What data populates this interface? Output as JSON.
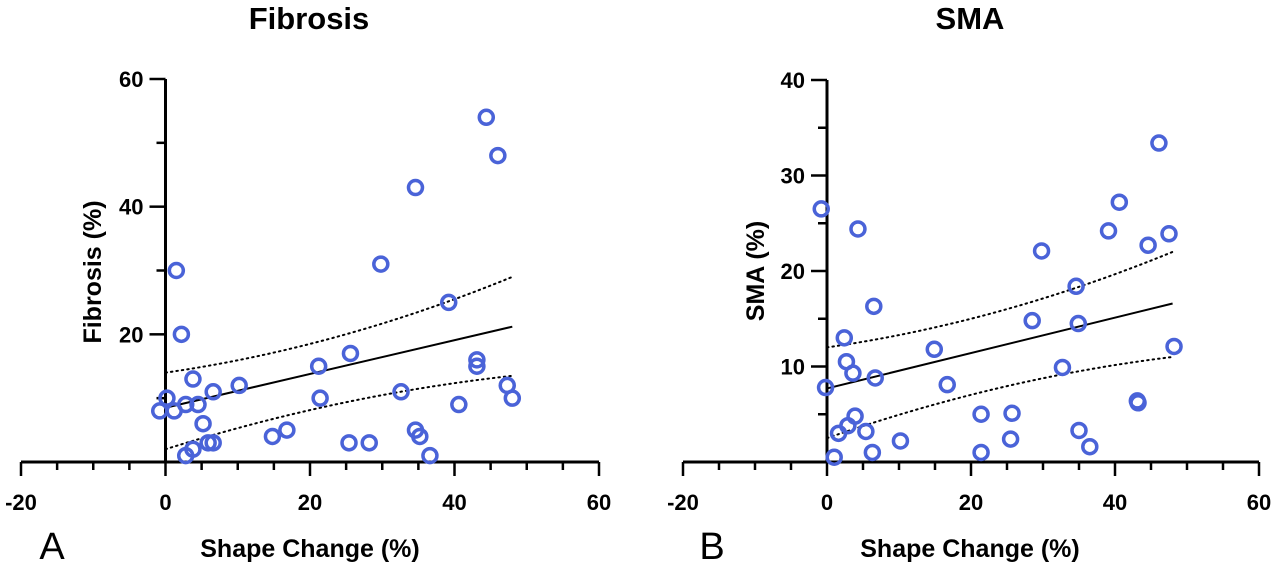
{
  "colors": {
    "marker": "#4a63d8",
    "axis": "#000000",
    "fit": "#000000"
  },
  "chart_data": [
    {
      "type": "scatter",
      "panel_letter": "A",
      "title": "Fibrosis",
      "xlabel": "Shape Change (%)",
      "ylabel": "Fibrosis (%)",
      "xlim": [
        -20,
        60
      ],
      "ylim": [
        0,
        60
      ],
      "xticks": [
        "-20",
        "0",
        "20",
        "40",
        "60"
      ],
      "yticks": [
        "20",
        "40",
        "60"
      ],
      "grid": false,
      "fit_line": {
        "x": [
          0,
          48
        ],
        "y": [
          8.5,
          21.2
        ]
      },
      "ci_upper": {
        "x": [
          0,
          48
        ],
        "y": [
          14.0,
          29.0
        ]
      },
      "ci_lower": {
        "x": [
          0,
          48
        ],
        "y": [
          2.0,
          13.5
        ]
      },
      "points": [
        {
          "x": 1.5,
          "y": 30
        },
        {
          "x": 2.2,
          "y": 20
        },
        {
          "x": -0.8,
          "y": 8
        },
        {
          "x": 0.2,
          "y": 10
        },
        {
          "x": 1.2,
          "y": 8
        },
        {
          "x": 2.8,
          "y": 9
        },
        {
          "x": 3.8,
          "y": 13
        },
        {
          "x": 4.5,
          "y": 9
        },
        {
          "x": 6.6,
          "y": 11
        },
        {
          "x": 5.2,
          "y": 6
        },
        {
          "x": 5.9,
          "y": 3
        },
        {
          "x": 6.6,
          "y": 3
        },
        {
          "x": 3.8,
          "y": 2
        },
        {
          "x": 2.8,
          "y": 1
        },
        {
          "x": 10.2,
          "y": 12
        },
        {
          "x": 14.8,
          "y": 4
        },
        {
          "x": 16.8,
          "y": 5
        },
        {
          "x": 21.2,
          "y": 15
        },
        {
          "x": 21.4,
          "y": 10
        },
        {
          "x": 25.6,
          "y": 17
        },
        {
          "x": 25.4,
          "y": 3
        },
        {
          "x": 28.2,
          "y": 3
        },
        {
          "x": 29.8,
          "y": 31
        },
        {
          "x": 32.6,
          "y": 11
        },
        {
          "x": 34.6,
          "y": 43
        },
        {
          "x": 34.6,
          "y": 5
        },
        {
          "x": 35.2,
          "y": 4
        },
        {
          "x": 36.6,
          "y": 1
        },
        {
          "x": 39.2,
          "y": 25
        },
        {
          "x": 40.6,
          "y": 9
        },
        {
          "x": 43.1,
          "y": 16
        },
        {
          "x": 43.1,
          "y": 15
        },
        {
          "x": 44.4,
          "y": 54
        },
        {
          "x": 46.0,
          "y": 48
        },
        {
          "x": 47.3,
          "y": 12
        },
        {
          "x": 48.0,
          "y": 10
        }
      ]
    },
    {
      "type": "scatter",
      "panel_letter": "B",
      "title": "SMA",
      "xlabel": "Shape Change (%)",
      "ylabel": "SMA (%)",
      "xlim": [
        -20,
        60
      ],
      "ylim": [
        0,
        40
      ],
      "xticks": [
        "-20",
        "0",
        "20",
        "40",
        "60"
      ],
      "yticks": [
        "10",
        "20",
        "30",
        "40"
      ],
      "grid": false,
      "fit_line": {
        "x": [
          0,
          48
        ],
        "y": [
          7.7,
          16.6
        ]
      },
      "ci_upper": {
        "x": [
          0,
          48
        ],
        "y": [
          12.0,
          22.0
        ]
      },
      "ci_lower": {
        "x": [
          0,
          48
        ],
        "y": [
          2.5,
          11.0
        ]
      },
      "points": [
        {
          "x": -0.8,
          "y": 26.5
        },
        {
          "x": -0.2,
          "y": 7.8
        },
        {
          "x": 1.0,
          "y": 0.5
        },
        {
          "x": 1.6,
          "y": 3.0
        },
        {
          "x": 2.4,
          "y": 13.0
        },
        {
          "x": 2.7,
          "y": 10.5
        },
        {
          "x": 2.9,
          "y": 3.8
        },
        {
          "x": 3.6,
          "y": 9.3
        },
        {
          "x": 3.9,
          "y": 4.8
        },
        {
          "x": 4.3,
          "y": 24.4
        },
        {
          "x": 5.4,
          "y": 3.2
        },
        {
          "x": 6.3,
          "y": 1.0
        },
        {
          "x": 6.5,
          "y": 16.3
        },
        {
          "x": 6.7,
          "y": 8.8
        },
        {
          "x": 10.2,
          "y": 2.2
        },
        {
          "x": 14.9,
          "y": 11.8
        },
        {
          "x": 16.7,
          "y": 8.1
        },
        {
          "x": 21.4,
          "y": 5.0
        },
        {
          "x": 21.4,
          "y": 1.0
        },
        {
          "x": 25.7,
          "y": 5.1
        },
        {
          "x": 25.5,
          "y": 2.4
        },
        {
          "x": 28.5,
          "y": 14.8
        },
        {
          "x": 29.8,
          "y": 22.1
        },
        {
          "x": 32.7,
          "y": 9.9
        },
        {
          "x": 34.6,
          "y": 18.4
        },
        {
          "x": 34.9,
          "y": 14.5
        },
        {
          "x": 35.0,
          "y": 3.3
        },
        {
          "x": 36.5,
          "y": 1.6
        },
        {
          "x": 39.1,
          "y": 24.2
        },
        {
          "x": 40.6,
          "y": 27.2
        },
        {
          "x": 43.1,
          "y": 6.4
        },
        {
          "x": 43.2,
          "y": 6.2
        },
        {
          "x": 44.6,
          "y": 22.7
        },
        {
          "x": 46.1,
          "y": 33.4
        },
        {
          "x": 47.5,
          "y": 23.9
        },
        {
          "x": 48.2,
          "y": 12.1
        }
      ]
    }
  ]
}
